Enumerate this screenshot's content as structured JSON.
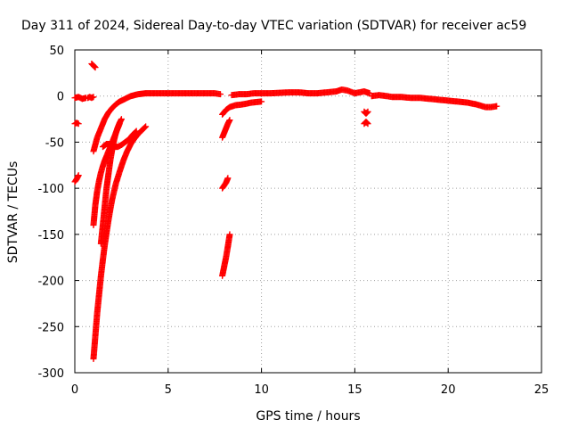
{
  "chart_data": {
    "type": "scatter",
    "title": "Day 311 of 2024, Sidereal Day-to-day VTEC variation (SDTVAR) for receiver ac59",
    "xlabel": "GPS time / hours",
    "ylabel": "SDTVAR / TECUs",
    "xlim": [
      0,
      25
    ],
    "ylim": [
      -300,
      50
    ],
    "xticks": [
      0,
      5,
      10,
      15,
      20,
      25
    ],
    "yticks": [
      50,
      0,
      -50,
      -100,
      -150,
      -200,
      -250,
      -300
    ],
    "grid": true,
    "marker": "+",
    "series": [
      {
        "name": "SDTVAR",
        "color": "#ff0000",
        "segments": [
          {
            "x": [
              0.0,
              0.1,
              0.2
            ],
            "y": [
              -30,
              -29,
              -30
            ]
          },
          {
            "x": [
              0.0,
              0.1,
              0.2
            ],
            "y": [
              -93,
              -90,
              -86
            ]
          },
          {
            "x": [
              0.0,
              0.2,
              0.4,
              0.6
            ],
            "y": [
              -2,
              -1,
              -3,
              -2
            ]
          },
          {
            "x": [
              0.7,
              0.8,
              0.9,
              1.0
            ],
            "y": [
              -2,
              -1,
              -2,
              -1
            ]
          },
          {
            "x": [
              0.9,
              1.0,
              1.1
            ],
            "y": [
              35,
              33,
              31
            ]
          },
          {
            "x": [
              1.0,
              1.2,
              1.4,
              1.6,
              1.8,
              2.0,
              2.2,
              2.4,
              2.6,
              2.8,
              3.0,
              3.2,
              3.4,
              3.6,
              3.8,
              4.0,
              4.5,
              5.0,
              5.5,
              6.0,
              6.5,
              7.0,
              7.5,
              7.8
            ],
            "y": [
              -60,
              -45,
              -35,
              -25,
              -18,
              -13,
              -9,
              -6,
              -4,
              -2,
              0,
              1,
              2,
              2.5,
              3,
              3,
              3,
              3,
              3,
              3,
              3,
              3,
              3,
              2
            ]
          },
          {
            "x": [
              1.0,
              1.1,
              1.2,
              1.3,
              1.4,
              1.5,
              1.6,
              1.8,
              2.0,
              2.2,
              2.4
            ],
            "y": [
              -140,
              -118,
              -103,
              -92,
              -83,
              -76,
              -70,
              -60,
              -50,
              -40,
              -30
            ]
          },
          {
            "x": [
              1.5,
              1.7,
              1.9,
              2.1,
              2.3,
              2.5,
              2.7,
              2.9,
              3.1,
              3.3
            ],
            "y": [
              -55,
              -52,
              -52,
              -55,
              -55,
              -53,
              -50,
              -47,
              -42,
              -38
            ]
          },
          {
            "x": [
              1.0,
              1.1,
              1.2,
              1.3,
              1.4,
              1.5,
              1.6,
              1.7,
              1.8,
              1.9,
              2.0,
              2.2,
              2.4,
              2.6,
              2.8,
              3.0,
              3.2,
              3.4,
              3.6,
              3.8
            ],
            "y": [
              -285,
              -260,
              -235,
              -215,
              -195,
              -178,
              -162,
              -148,
              -135,
              -123,
              -112,
              -95,
              -82,
              -70,
              -60,
              -52,
              -46,
              -41,
              -37,
              -33
            ]
          },
          {
            "x": [
              1.4,
              1.5,
              1.6,
              1.7,
              1.8,
              1.9,
              2.0,
              2.1,
              2.2,
              2.3,
              2.4,
              2.5
            ],
            "y": [
              -160,
              -140,
              -120,
              -100,
              -85,
              -70,
              -58,
              -48,
              -40,
              -34,
              -29,
              -25
            ]
          },
          {
            "x": [
              7.9,
              8.0,
              8.1,
              8.2
            ],
            "y": [
              -100,
              -97,
              -94,
              -89
            ]
          },
          {
            "x": [
              7.9,
              8.0,
              8.1,
              8.2,
              8.3
            ],
            "y": [
              -195,
              -185,
              -175,
              -163,
              -150
            ]
          },
          {
            "x": [
              7.9,
              8.0,
              8.1,
              8.2,
              8.3
            ],
            "y": [
              -45,
              -40,
              -35,
              -30,
              -26
            ]
          },
          {
            "x": [
              7.9,
              8.1,
              8.3,
              8.6,
              9.0,
              9.5,
              10.0
            ],
            "y": [
              -20,
              -15,
              -12,
              -10,
              -9,
              -7,
              -6
            ]
          },
          {
            "x": [
              8.4,
              8.8,
              9.2,
              9.6,
              10.0,
              10.5,
              11.0,
              11.5,
              12.0,
              12.5,
              13.0,
              13.5,
              14.0,
              14.3,
              14.6,
              15.0,
              15.5,
              15.8
            ],
            "y": [
              1,
              2,
              2,
              3,
              3,
              3,
              3.5,
              4,
              4,
              3,
              3,
              4,
              5,
              7,
              6,
              3,
              5,
              3
            ]
          },
          {
            "x": [
              15.5,
              15.6,
              15.7
            ],
            "y": [
              -17,
              -19,
              -17
            ]
          },
          {
            "x": [
              15.5,
              15.6,
              15.7
            ],
            "y": [
              -30,
              -28,
              -30
            ]
          },
          {
            "x": [
              15.9,
              16.3,
              16.7,
              17.0,
              17.5,
              18.0,
              18.5,
              19.0,
              19.5,
              20.0,
              20.5,
              21.0,
              21.5,
              22.0,
              22.3,
              22.6
            ],
            "y": [
              0,
              1,
              0,
              -1,
              -1,
              -2,
              -2,
              -3,
              -4,
              -5,
              -6,
              -7,
              -9,
              -12,
              -12,
              -11
            ]
          }
        ]
      }
    ]
  }
}
